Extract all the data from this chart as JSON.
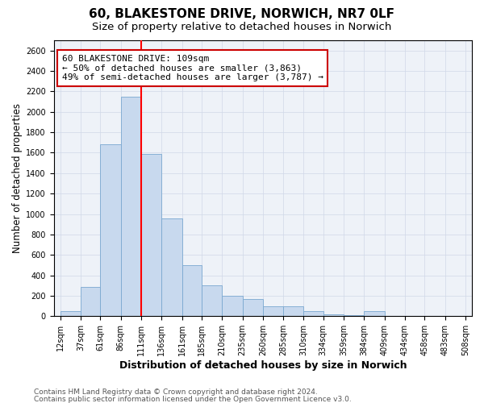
{
  "title": "60, BLAKESTONE DRIVE, NORWICH, NR7 0LF",
  "subtitle": "Size of property relative to detached houses in Norwich",
  "xlabel": "Distribution of detached houses by size in Norwich",
  "ylabel": "Number of detached properties",
  "footnote1": "Contains HM Land Registry data © Crown copyright and database right 2024.",
  "footnote2": "Contains public sector information licensed under the Open Government Licence v3.0.",
  "property_label": "60 BLAKESTONE DRIVE: 109sqm",
  "annotation_line1": "← 50% of detached houses are smaller (3,863)",
  "annotation_line2": "49% of semi-detached houses are larger (3,787) →",
  "bin_edges": [
    12,
    37,
    61,
    86,
    111,
    136,
    161,
    185,
    210,
    235,
    260,
    285,
    310,
    334,
    359,
    384,
    409,
    434,
    458,
    483,
    508
  ],
  "bin_counts": [
    50,
    290,
    1680,
    2150,
    1590,
    960,
    500,
    300,
    200,
    170,
    100,
    100,
    50,
    20,
    10,
    50,
    5,
    5,
    5,
    5
  ],
  "bar_color": "#c8d9ee",
  "bar_edge_color": "#7aa8d0",
  "redline_x": 111,
  "ylim": [
    0,
    2700
  ],
  "yticks": [
    0,
    200,
    400,
    600,
    800,
    1000,
    1200,
    1400,
    1600,
    1800,
    2000,
    2200,
    2400,
    2600
  ],
  "annotation_box_color": "#cc0000",
  "title_fontsize": 11,
  "subtitle_fontsize": 9.5,
  "xlabel_fontsize": 9,
  "ylabel_fontsize": 8.5,
  "tick_label_fontsize": 7,
  "annotation_fontsize": 8,
  "footnote_fontsize": 6.5
}
